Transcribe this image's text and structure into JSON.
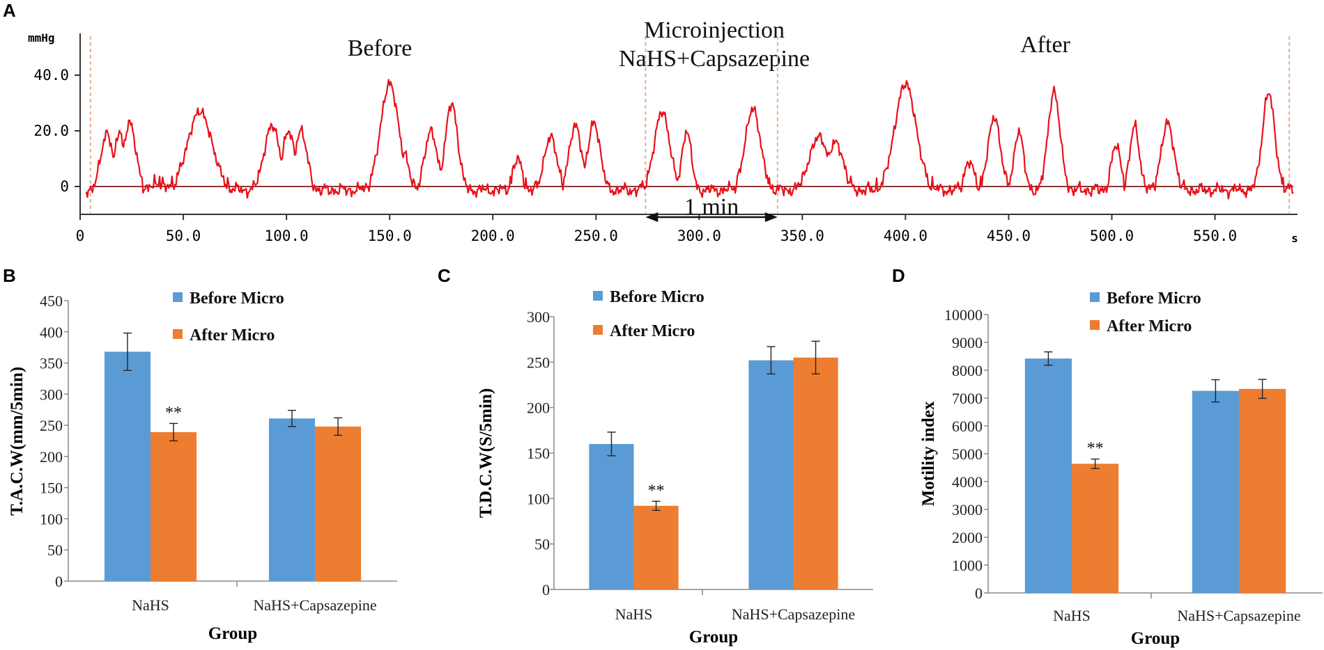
{
  "colors": {
    "before": "#5b9bd5",
    "after": "#ed7d31",
    "trace": "#e8111b",
    "baseline": "#7b1a1a",
    "marker": "#e0b090",
    "axis": "#888888"
  },
  "trace_panel": {
    "letter": "A",
    "y_unit": "mmHg",
    "x_unit": "s",
    "label_before": "Before",
    "label_micro_line1": "Microinjection",
    "label_micro_line2": "NaHS+Capsazepine",
    "label_after": "After",
    "duration_label": "1 min",
    "chart_data": {
      "type": "line",
      "x_range": [
        0,
        590
      ],
      "y_range": [
        -10,
        55
      ],
      "y_ticks": [
        0,
        20,
        40
      ],
      "y_tick_labels": [
        "0",
        "20.0",
        "40.0"
      ],
      "x_ticks": [
        0,
        50,
        100,
        150,
        200,
        250,
        300,
        350,
        400,
        450,
        500,
        550
      ],
      "x_tick_labels": [
        "0",
        "50.0",
        "100.0",
        "150.0",
        "200.0",
        "250.0",
        "300.0",
        "350.0",
        "400.0",
        "450.0",
        "500.0",
        "550.0"
      ],
      "event_markers_s": [
        5,
        274,
        338,
        586
      ],
      "one_min_span_s": [
        274,
        338
      ],
      "peaks": [
        {
          "t": 13,
          "h": 19,
          "w": 4
        },
        {
          "t": 19,
          "h": 20,
          "w": 3
        },
        {
          "t": 24,
          "h": 23,
          "w": 4
        },
        {
          "t": 38,
          "h": 3,
          "w": 3
        },
        {
          "t": 58,
          "h": 27,
          "w": 8
        },
        {
          "t": 93,
          "h": 22,
          "w": 5
        },
        {
          "t": 101,
          "h": 20,
          "w": 4
        },
        {
          "t": 107,
          "h": 20,
          "w": 4
        },
        {
          "t": 150,
          "h": 37,
          "w": 6
        },
        {
          "t": 157,
          "h": 12,
          "w": 3
        },
        {
          "t": 170,
          "h": 20,
          "w": 4
        },
        {
          "t": 180,
          "h": 30,
          "w": 4
        },
        {
          "t": 212,
          "h": 10,
          "w": 3
        },
        {
          "t": 228,
          "h": 18,
          "w": 4
        },
        {
          "t": 240,
          "h": 22,
          "w": 4
        },
        {
          "t": 249,
          "h": 23,
          "w": 4
        },
        {
          "t": 282,
          "h": 27,
          "w": 5
        },
        {
          "t": 294,
          "h": 20,
          "w": 3
        },
        {
          "t": 326,
          "h": 28,
          "w": 5
        },
        {
          "t": 358,
          "h": 18,
          "w": 6
        },
        {
          "t": 366,
          "h": 16,
          "w": 5
        },
        {
          "t": 400,
          "h": 37,
          "w": 7
        },
        {
          "t": 431,
          "h": 9,
          "w": 3
        },
        {
          "t": 443,
          "h": 25,
          "w": 4
        },
        {
          "t": 455,
          "h": 20,
          "w": 3
        },
        {
          "t": 472,
          "h": 34,
          "w": 4
        },
        {
          "t": 502,
          "h": 15,
          "w": 3
        },
        {
          "t": 511,
          "h": 22,
          "w": 3
        },
        {
          "t": 527,
          "h": 23,
          "w": 4
        },
        {
          "t": 576,
          "h": 34,
          "w": 4
        }
      ]
    }
  },
  "bar_panels": [
    {
      "letter": "B",
      "legend": [
        "Before Micro",
        "After Micro"
      ],
      "chart_data": {
        "type": "bar",
        "ylabel": "T.A.C.W(mm/5min)",
        "xlabel": "Group",
        "categories": [
          "NaHS",
          "NaHS+Capsazepine"
        ],
        "ylim": [
          0,
          450
        ],
        "yticks": [
          0,
          50,
          100,
          150,
          200,
          250,
          300,
          350,
          400,
          450
        ],
        "series": [
          {
            "name": "Before Micro",
            "values": [
              368,
              261
            ],
            "errors": [
              30,
              13
            ]
          },
          {
            "name": "After Micro",
            "values": [
              239,
              248
            ],
            "errors": [
              14,
              14
            ]
          }
        ],
        "significance": [
          {
            "category": "NaHS",
            "series": "After Micro",
            "label": "**"
          }
        ]
      }
    },
    {
      "letter": "C",
      "legend": [
        "Before Micro",
        "After Micro"
      ],
      "chart_data": {
        "type": "bar",
        "ylabel": "T.D.C.W(S/5min)",
        "xlabel": "Group",
        "categories": [
          "NaHS",
          "NaHS+Capsazepine"
        ],
        "ylim": [
          0,
          300
        ],
        "yticks": [
          0,
          50,
          100,
          150,
          200,
          250,
          300
        ],
        "series": [
          {
            "name": "Before Micro",
            "values": [
              160,
              252
            ],
            "errors": [
              13,
              15
            ]
          },
          {
            "name": "After Micro",
            "values": [
              92,
              255
            ],
            "errors": [
              5,
              18
            ]
          }
        ],
        "significance": [
          {
            "category": "NaHS",
            "series": "After Micro",
            "label": "**"
          }
        ]
      }
    },
    {
      "letter": "D",
      "legend": [
        "Before Micro",
        "After Micro"
      ],
      "chart_data": {
        "type": "bar",
        "ylabel": "Motility index",
        "xlabel": "Group",
        "categories": [
          "NaHS",
          "NaHS+Capsazepine"
        ],
        "ylim": [
          0,
          10000
        ],
        "yticks": [
          0,
          1000,
          2000,
          3000,
          4000,
          5000,
          6000,
          7000,
          8000,
          9000,
          10000
        ],
        "series": [
          {
            "name": "Before Micro",
            "values": [
              8420,
              7260
            ],
            "errors": [
              240,
              400
            ]
          },
          {
            "name": "After Micro",
            "values": [
              4640,
              7330
            ],
            "errors": [
              170,
              340
            ]
          }
        ],
        "significance": [
          {
            "category": "NaHS",
            "series": "After Micro",
            "label": "**"
          }
        ]
      }
    }
  ]
}
